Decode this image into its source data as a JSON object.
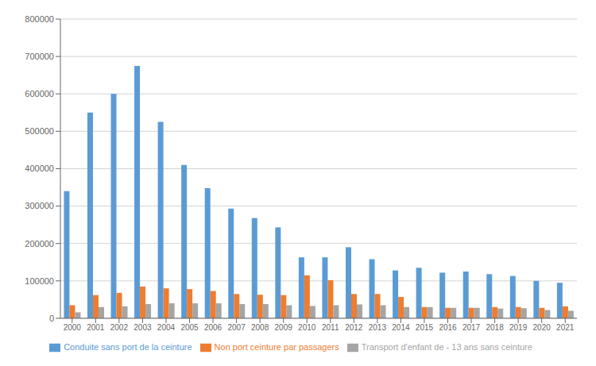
{
  "chart_data": {
    "type": "bar",
    "categories": [
      "2000",
      "2001",
      "2002",
      "2003",
      "2004",
      "2005",
      "2006",
      "2007",
      "2008",
      "2009",
      "2010",
      "2011",
      "2012",
      "2013",
      "2014",
      "2015",
      "2016",
      "2017",
      "2018",
      "2019",
      "2020",
      "2021"
    ],
    "series": [
      {
        "name": "Conduite sans port de la ceinture",
        "color": "#5B9BD5",
        "values": [
          340000,
          550000,
          600000,
          675000,
          525000,
          410000,
          348000,
          293000,
          268000,
          243000,
          163000,
          163000,
          190000,
          158000,
          128000,
          135000,
          122000,
          125000,
          118000,
          113000,
          100000,
          95000
        ]
      },
      {
        "name": "Non port ceinture par passagers",
        "color": "#ED7D31",
        "values": [
          35000,
          62000,
          68000,
          85000,
          80000,
          78000,
          73000,
          65000,
          63000,
          62000,
          115000,
          102000,
          65000,
          65000,
          57000,
          30000,
          28000,
          28000,
          30000,
          30000,
          28000,
          32000
        ]
      },
      {
        "name": "Transport d'enfant de - 13 ans sans ceinture",
        "color": "#A5A5A5",
        "values": [
          16000,
          30000,
          32000,
          38000,
          40000,
          40000,
          40000,
          38000,
          38000,
          35000,
          33000,
          35000,
          37000,
          35000,
          30000,
          30000,
          28000,
          28000,
          26000,
          27000,
          22000,
          20000
        ]
      }
    ],
    "ylim": [
      0,
      800000
    ],
    "yticks": [
      0,
      100000,
      200000,
      300000,
      400000,
      500000,
      600000,
      700000,
      800000
    ],
    "grid": true,
    "legend": "bottom"
  }
}
